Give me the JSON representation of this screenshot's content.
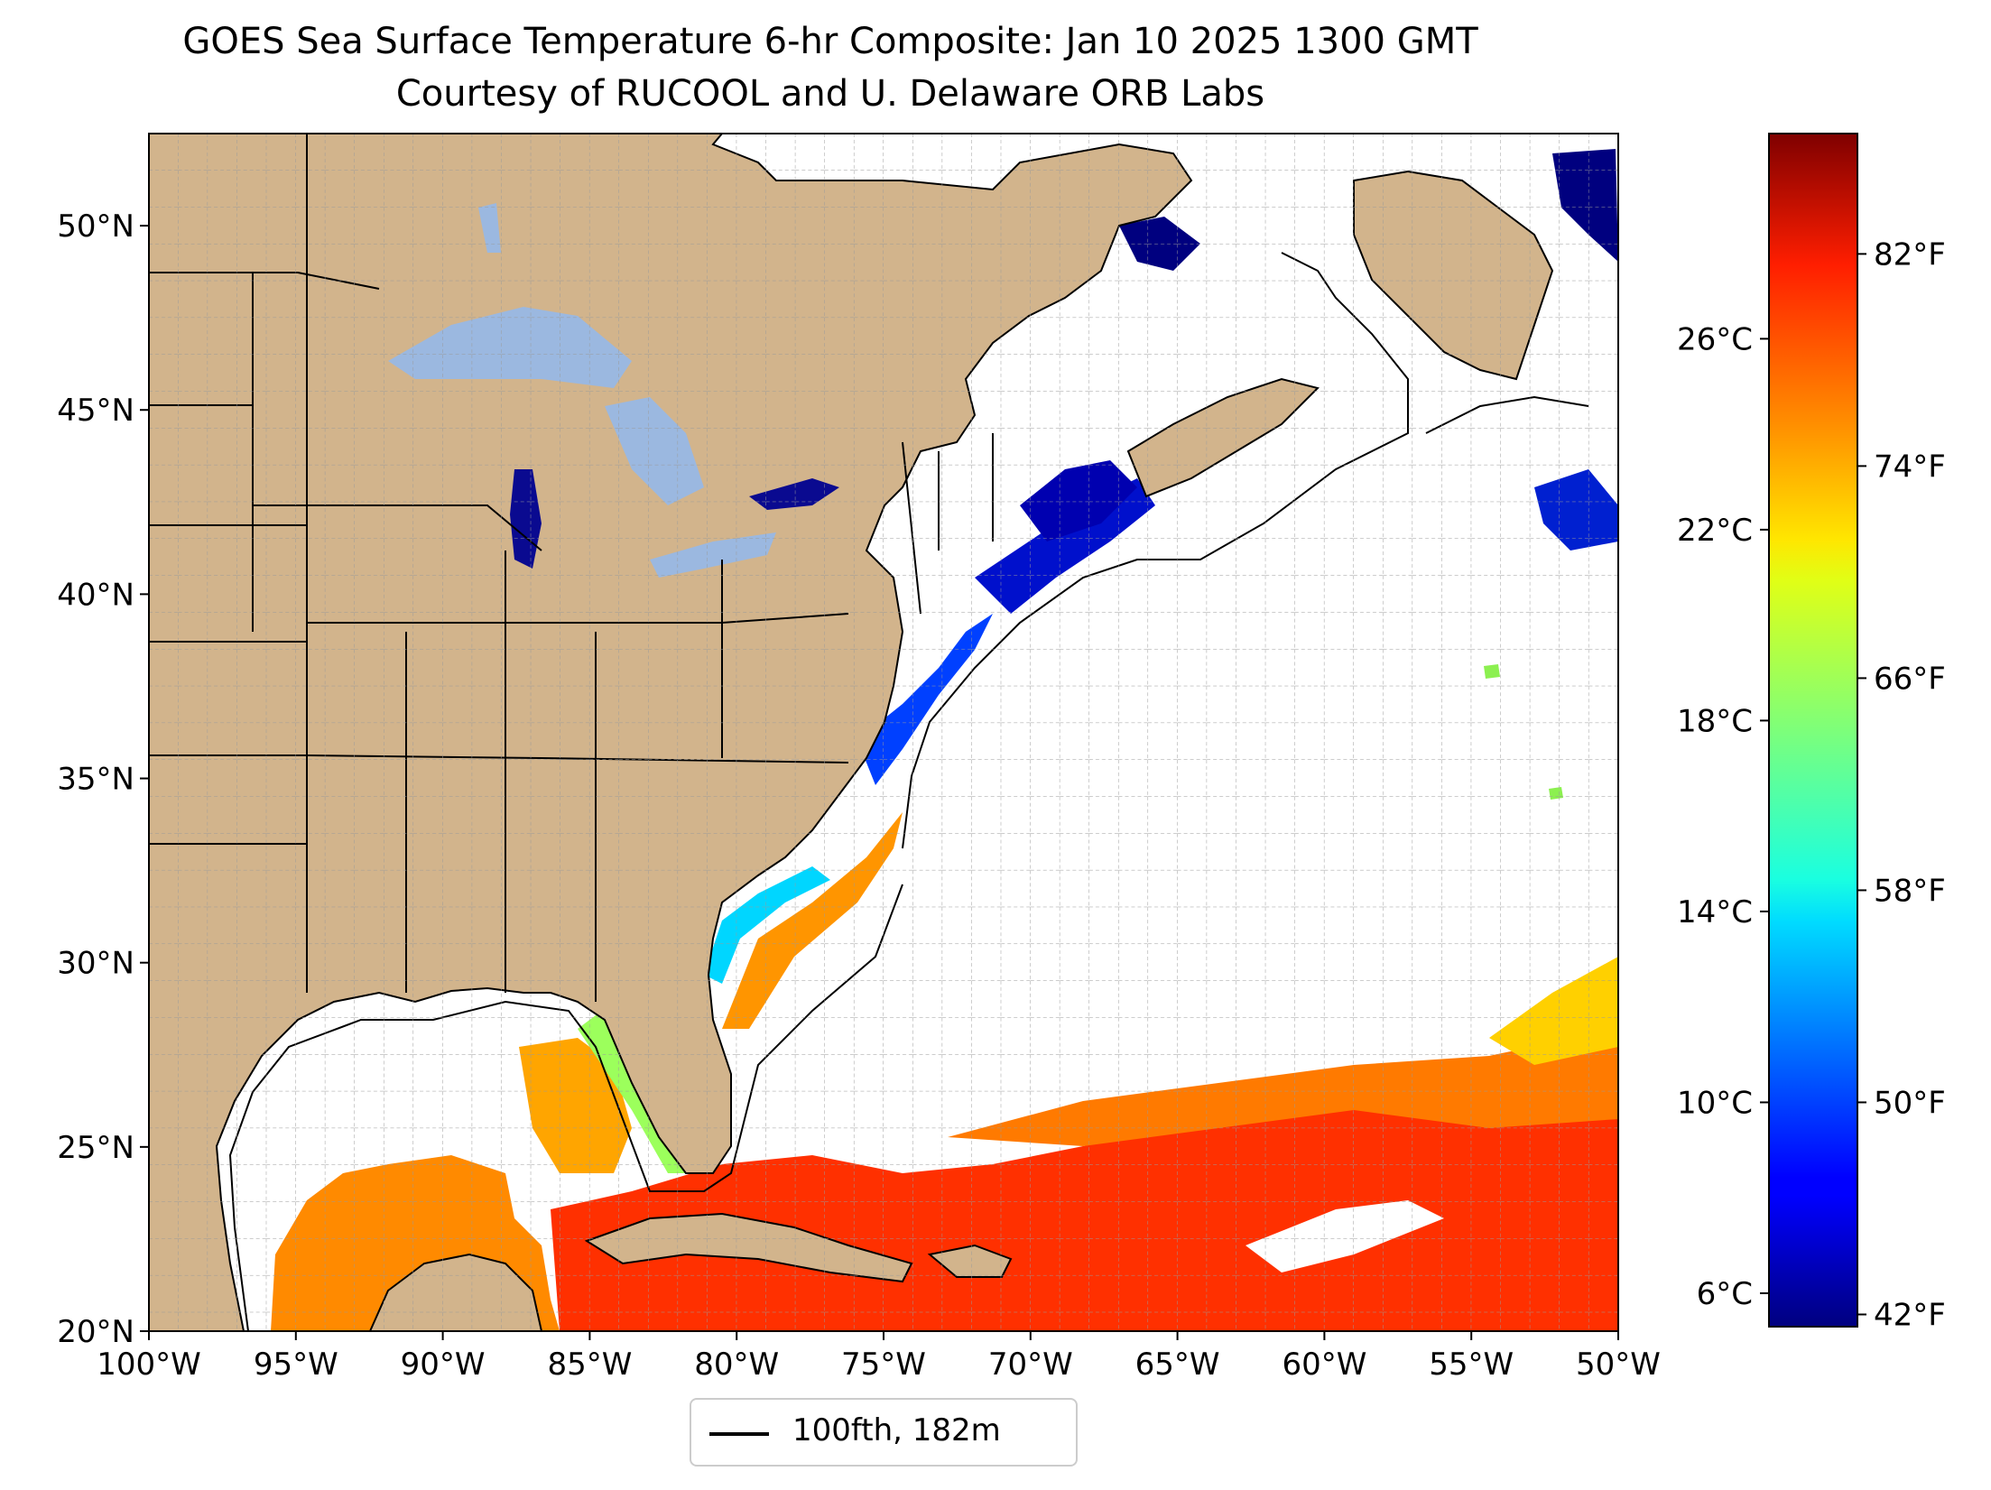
{
  "title": "GOES Sea Surface Temperature 6-hr Composite: Jan 10 2025 1300 GMT",
  "subtitle": "Courtesy of RUCOOL and U. Delaware ORB Labs",
  "legend": {
    "label": "100fth, 182m",
    "line_color": "#000000"
  },
  "map": {
    "lon_range": [
      -100,
      -50
    ],
    "lat_range": [
      20,
      52.5
    ],
    "lon_ticks": [
      -100,
      -95,
      -90,
      -85,
      -80,
      -75,
      -70,
      -65,
      -60,
      -55,
      -50
    ],
    "lon_tick_labels": [
      "100°W",
      "95°W",
      "90°W",
      "85°W",
      "80°W",
      "75°W",
      "70°W",
      "65°W",
      "60°W",
      "55°W",
      "50°W"
    ],
    "lat_ticks": [
      20,
      25,
      30,
      35,
      40,
      45,
      50
    ],
    "lat_tick_labels": [
      "20°N",
      "25°N",
      "30°N",
      "35°N",
      "40°N",
      "45°N",
      "50°N"
    ],
    "grid": "dashed, 1 degree",
    "colors": {
      "land": "#d2b48c",
      "lakes": "#9bb8e0",
      "ocean_no_data": "#ffffff",
      "borders": "#000000"
    }
  },
  "colorbar": {
    "colormap": "jet",
    "range_celsius": [
      5.3,
      30.3
    ],
    "celsius_ticks": [
      6,
      10,
      14,
      18,
      22,
      26
    ],
    "celsius_labels": [
      "6°C",
      "10°C",
      "14°C",
      "18°C",
      "22°C",
      "26°C"
    ],
    "fahrenheit_ticks": [
      42,
      50,
      58,
      66,
      74,
      82
    ],
    "fahrenheit_labels": [
      "42°F",
      "50°F",
      "58°F",
      "66°F",
      "74°F",
      "82°F"
    ]
  }
}
